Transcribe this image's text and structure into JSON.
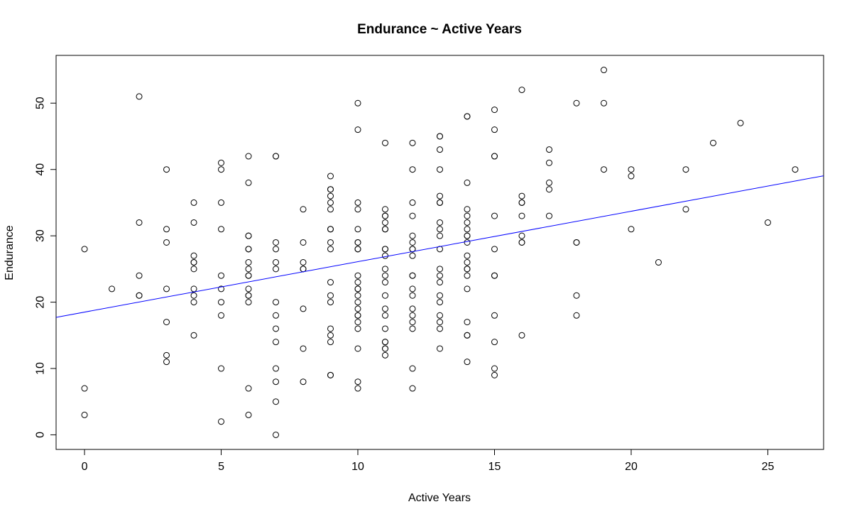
{
  "chart_data": {
    "type": "scatter",
    "title": "Endurance ~ Active Years",
    "xlabel": "Active Years",
    "ylabel": "Endurance",
    "xlim": [
      -1.04,
      27.04
    ],
    "ylim": [
      -2.2,
      57.2
    ],
    "xticks": [
      0,
      5,
      10,
      15,
      20,
      25
    ],
    "yticks": [
      0,
      10,
      20,
      30,
      40,
      50
    ],
    "grid": false,
    "regression_line": {
      "intercept": 18.5,
      "slope": 0.76,
      "color": "#0000ff"
    },
    "point_color": "#000000",
    "points": [
      [
        0,
        28
      ],
      [
        0,
        7
      ],
      [
        0,
        3
      ],
      [
        1,
        22
      ],
      [
        2,
        51
      ],
      [
        2,
        32
      ],
      [
        2,
        24
      ],
      [
        2,
        21
      ],
      [
        2,
        21
      ],
      [
        3,
        40
      ],
      [
        3,
        31
      ],
      [
        3,
        29
      ],
      [
        3,
        22
      ],
      [
        3,
        17
      ],
      [
        3,
        12
      ],
      [
        3,
        11
      ],
      [
        4,
        35
      ],
      [
        4,
        32
      ],
      [
        4,
        27
      ],
      [
        4,
        26
      ],
      [
        4,
        26
      ],
      [
        4,
        25
      ],
      [
        4,
        22
      ],
      [
        4,
        21
      ],
      [
        4,
        20
      ],
      [
        4,
        15
      ],
      [
        5,
        41
      ],
      [
        5,
        40
      ],
      [
        5,
        35
      ],
      [
        5,
        31
      ],
      [
        5,
        24
      ],
      [
        5,
        22
      ],
      [
        5,
        20
      ],
      [
        5,
        18
      ],
      [
        5,
        10
      ],
      [
        5,
        2
      ],
      [
        6,
        42
      ],
      [
        6,
        38
      ],
      [
        6,
        30
      ],
      [
        6,
        30
      ],
      [
        6,
        28
      ],
      [
        6,
        28
      ],
      [
        6,
        26
      ],
      [
        6,
        25
      ],
      [
        6,
        24
      ],
      [
        6,
        24
      ],
      [
        6,
        22
      ],
      [
        6,
        21
      ],
      [
        6,
        21
      ],
      [
        6,
        20
      ],
      [
        6,
        7
      ],
      [
        6,
        3
      ],
      [
        7,
        42
      ],
      [
        7,
        42
      ],
      [
        7,
        29
      ],
      [
        7,
        28
      ],
      [
        7,
        26
      ],
      [
        7,
        25
      ],
      [
        7,
        20
      ],
      [
        7,
        18
      ],
      [
        7,
        16
      ],
      [
        7,
        14
      ],
      [
        7,
        10
      ],
      [
        7,
        8
      ],
      [
        7,
        5
      ],
      [
        7,
        0
      ],
      [
        8,
        34
      ],
      [
        8,
        29
      ],
      [
        8,
        26
      ],
      [
        8,
        25
      ],
      [
        8,
        25
      ],
      [
        8,
        19
      ],
      [
        8,
        13
      ],
      [
        8,
        8
      ],
      [
        9,
        39
      ],
      [
        9,
        37
      ],
      [
        9,
        37
      ],
      [
        9,
        36
      ],
      [
        9,
        35
      ],
      [
        9,
        34
      ],
      [
        9,
        31
      ],
      [
        9,
        31
      ],
      [
        9,
        29
      ],
      [
        9,
        28
      ],
      [
        9,
        23
      ],
      [
        9,
        21
      ],
      [
        9,
        20
      ],
      [
        9,
        16
      ],
      [
        9,
        15
      ],
      [
        9,
        14
      ],
      [
        9,
        9
      ],
      [
        9,
        9
      ],
      [
        10,
        50
      ],
      [
        10,
        46
      ],
      [
        10,
        35
      ],
      [
        10,
        34
      ],
      [
        10,
        31
      ],
      [
        10,
        29
      ],
      [
        10,
        29
      ],
      [
        10,
        28
      ],
      [
        10,
        28
      ],
      [
        10,
        24
      ],
      [
        10,
        23
      ],
      [
        10,
        22
      ],
      [
        10,
        22
      ],
      [
        10,
        21
      ],
      [
        10,
        20
      ],
      [
        10,
        19
      ],
      [
        10,
        18
      ],
      [
        10,
        18
      ],
      [
        10,
        17
      ],
      [
        10,
        16
      ],
      [
        10,
        13
      ],
      [
        10,
        8
      ],
      [
        10,
        7
      ],
      [
        11,
        44
      ],
      [
        11,
        34
      ],
      [
        11,
        33
      ],
      [
        11,
        33
      ],
      [
        11,
        32
      ],
      [
        11,
        31
      ],
      [
        11,
        31
      ],
      [
        11,
        28
      ],
      [
        11,
        28
      ],
      [
        11,
        27
      ],
      [
        11,
        25
      ],
      [
        11,
        24
      ],
      [
        11,
        23
      ],
      [
        11,
        21
      ],
      [
        11,
        19
      ],
      [
        11,
        18
      ],
      [
        11,
        16
      ],
      [
        11,
        14
      ],
      [
        11,
        14
      ],
      [
        11,
        13
      ],
      [
        11,
        13
      ],
      [
        11,
        12
      ],
      [
        12,
        44
      ],
      [
        12,
        40
      ],
      [
        12,
        35
      ],
      [
        12,
        33
      ],
      [
        12,
        30
      ],
      [
        12,
        29
      ],
      [
        12,
        28
      ],
      [
        12,
        28
      ],
      [
        12,
        27
      ],
      [
        12,
        24
      ],
      [
        12,
        24
      ],
      [
        12,
        22
      ],
      [
        12,
        21
      ],
      [
        12,
        19
      ],
      [
        12,
        18
      ],
      [
        12,
        17
      ],
      [
        12,
        16
      ],
      [
        12,
        10
      ],
      [
        12,
        7
      ],
      [
        13,
        45
      ],
      [
        13,
        45
      ],
      [
        13,
        43
      ],
      [
        13,
        40
      ],
      [
        13,
        36
      ],
      [
        13,
        35
      ],
      [
        13,
        35
      ],
      [
        13,
        32
      ],
      [
        13,
        31
      ],
      [
        13,
        30
      ],
      [
        13,
        28
      ],
      [
        13,
        25
      ],
      [
        13,
        24
      ],
      [
        13,
        23
      ],
      [
        13,
        21
      ],
      [
        13,
        20
      ],
      [
        13,
        18
      ],
      [
        13,
        17
      ],
      [
        13,
        16
      ],
      [
        13,
        13
      ],
      [
        14,
        48
      ],
      [
        14,
        48
      ],
      [
        14,
        38
      ],
      [
        14,
        34
      ],
      [
        14,
        33
      ],
      [
        14,
        32
      ],
      [
        14,
        31
      ],
      [
        14,
        30
      ],
      [
        14,
        30
      ],
      [
        14,
        29
      ],
      [
        14,
        27
      ],
      [
        14,
        26
      ],
      [
        14,
        25
      ],
      [
        14,
        25
      ],
      [
        14,
        24
      ],
      [
        14,
        22
      ],
      [
        14,
        17
      ],
      [
        14,
        15
      ],
      [
        14,
        15
      ],
      [
        14,
        11
      ],
      [
        15,
        49
      ],
      [
        15,
        46
      ],
      [
        15,
        42
      ],
      [
        15,
        42
      ],
      [
        15,
        33
      ],
      [
        15,
        28
      ],
      [
        15,
        24
      ],
      [
        15,
        24
      ],
      [
        15,
        18
      ],
      [
        15,
        14
      ],
      [
        15,
        10
      ],
      [
        15,
        9
      ],
      [
        16,
        52
      ],
      [
        16,
        36
      ],
      [
        16,
        35
      ],
      [
        16,
        35
      ],
      [
        16,
        33
      ],
      [
        16,
        30
      ],
      [
        16,
        29
      ],
      [
        16,
        29
      ],
      [
        16,
        15
      ],
      [
        17,
        43
      ],
      [
        17,
        41
      ],
      [
        17,
        38
      ],
      [
        17,
        37
      ],
      [
        17,
        33
      ],
      [
        18,
        50
      ],
      [
        18,
        29
      ],
      [
        18,
        29
      ],
      [
        18,
        21
      ],
      [
        18,
        18
      ],
      [
        19,
        55
      ],
      [
        19,
        50
      ],
      [
        19,
        40
      ],
      [
        20,
        40
      ],
      [
        20,
        39
      ],
      [
        20,
        31
      ],
      [
        21,
        26
      ],
      [
        22,
        40
      ],
      [
        22,
        34
      ],
      [
        23,
        44
      ],
      [
        24,
        47
      ],
      [
        25,
        32
      ],
      [
        26,
        40
      ]
    ]
  }
}
